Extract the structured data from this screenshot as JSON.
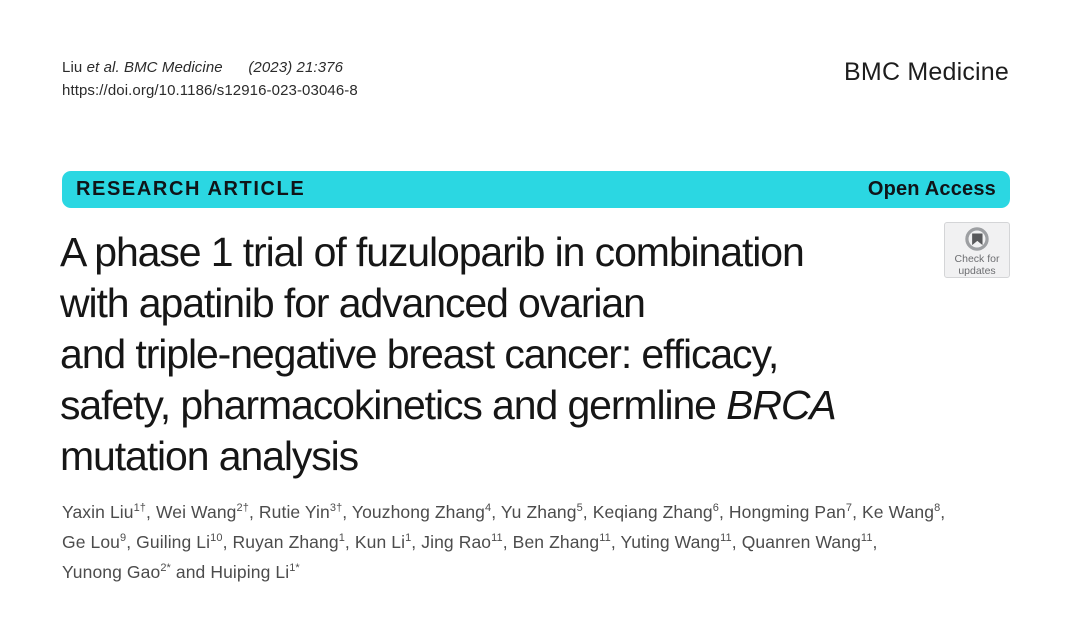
{
  "page": {
    "citation": {
      "line1_segments": [
        {
          "text": "Liu ",
          "italic": false
        },
        {
          "text": "et al. BMC Medicine",
          "italic": true
        },
        {
          "text": "      (2023) 21:376",
          "italic": true
        }
      ],
      "doi": "https://doi.org/10.1186/s12916-023-03046-8"
    },
    "journal_name": "BMC Medicine",
    "banner": {
      "article_type": "RESEARCH ARTICLE",
      "access_label": "Open Access",
      "color": "#2bd7e2"
    },
    "check_badge": {
      "line1": "Check for",
      "line2": "updates"
    },
    "title_lines": [
      [
        {
          "text": "A phase 1 trial of fuzuloparib in combination"
        }
      ],
      [
        {
          "text": "with apatinib for advanced ovarian"
        }
      ],
      [
        {
          "text": "and triple-negative breast cancer: efficacy,"
        }
      ],
      [
        {
          "text": "safety, pharmacokinetics and germline "
        },
        {
          "text": "BRCA",
          "italic": true
        }
      ],
      [
        {
          "text": "mutation analysis"
        }
      ]
    ],
    "author_lines": [
      [
        {
          "name": "Yaxin Liu",
          "sup": "1†",
          "after": ", "
        },
        {
          "name": "Wei Wang",
          "sup": "2†",
          "after": ", "
        },
        {
          "name": "Rutie Yin",
          "sup": "3†",
          "after": ", "
        },
        {
          "name": "Youzhong Zhang",
          "sup": "4",
          "after": ", "
        },
        {
          "name": "Yu Zhang",
          "sup": "5",
          "after": ", "
        },
        {
          "name": "Keqiang Zhang",
          "sup": "6",
          "after": ", "
        },
        {
          "name": "Hongming Pan",
          "sup": "7",
          "after": ", "
        },
        {
          "name": "Ke Wang",
          "sup": "8",
          "after": ","
        }
      ],
      [
        {
          "name": "Ge Lou",
          "sup": "9",
          "after": ", "
        },
        {
          "name": "Guiling Li",
          "sup": "10",
          "after": ", "
        },
        {
          "name": "Ruyan Zhang",
          "sup": "1",
          "after": ", "
        },
        {
          "name": "Kun Li",
          "sup": "1",
          "after": ", "
        },
        {
          "name": "Jing Rao",
          "sup": "11",
          "after": ", "
        },
        {
          "name": "Ben Zhang",
          "sup": "11",
          "after": ", "
        },
        {
          "name": "Yuting Wang",
          "sup": "11",
          "after": ", "
        },
        {
          "name": "Quanren Wang",
          "sup": "11",
          "after": ","
        }
      ],
      [
        {
          "name": "Yunong Gao",
          "sup": "2*",
          "after": " and "
        },
        {
          "name": "Huiping Li",
          "sup": "1*",
          "after": ""
        }
      ]
    ]
  }
}
